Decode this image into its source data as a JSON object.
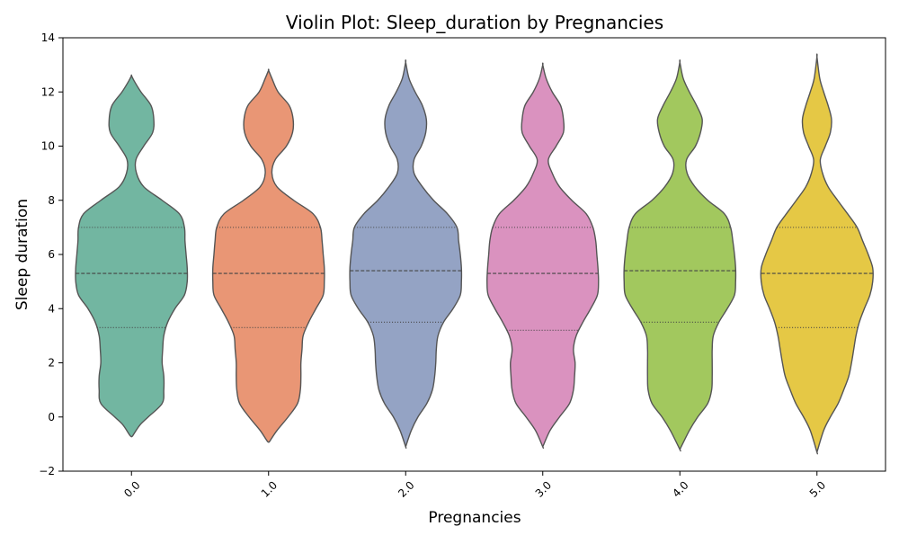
{
  "chart_data": {
    "type": "violin",
    "title": "Violin Plot: Sleep_duration by Pregnancies",
    "xlabel": "Pregnancies",
    "ylabel": "Sleep duration",
    "ylim": [
      -2,
      14
    ],
    "y_ticks": [
      -2,
      0,
      2,
      4,
      6,
      8,
      10,
      12,
      14
    ],
    "y_tick_labels": [
      "−2",
      "0",
      "2",
      "4",
      "6",
      "8",
      "10",
      "12",
      "14"
    ],
    "categories": [
      "0.0",
      "1.0",
      "2.0",
      "3.0",
      "4.0",
      "5.0"
    ],
    "x_tick_rotation_deg": -45,
    "grid": false,
    "legend": "none",
    "inner": "quartile",
    "series": [
      {
        "category": "0.0",
        "color": "#72b6a1",
        "min": -0.7,
        "max": 12.6,
        "q1": 3.3,
        "median": 5.3,
        "q3": 7.0,
        "density_profile": [
          [
            -0.7,
            0.02
          ],
          [
            -0.3,
            0.15
          ],
          [
            0.0,
            0.3
          ],
          [
            0.5,
            0.55
          ],
          [
            1.0,
            0.58
          ],
          [
            1.5,
            0.58
          ],
          [
            2.0,
            0.55
          ],
          [
            2.5,
            0.56
          ],
          [
            3.0,
            0.58
          ],
          [
            3.5,
            0.65
          ],
          [
            4.0,
            0.78
          ],
          [
            4.5,
            0.95
          ],
          [
            5.0,
            1.0
          ],
          [
            5.5,
            1.0
          ],
          [
            6.0,
            0.98
          ],
          [
            6.5,
            0.96
          ],
          [
            7.0,
            0.95
          ],
          [
            7.5,
            0.86
          ],
          [
            8.0,
            0.55
          ],
          [
            8.5,
            0.22
          ],
          [
            9.0,
            0.09
          ],
          [
            9.5,
            0.08
          ],
          [
            10.0,
            0.22
          ],
          [
            10.5,
            0.38
          ],
          [
            11.0,
            0.4
          ],
          [
            11.5,
            0.35
          ],
          [
            12.0,
            0.17
          ],
          [
            12.4,
            0.05
          ],
          [
            12.6,
            0.0
          ]
        ]
      },
      {
        "category": "1.0",
        "color": "#e99675",
        "min": -0.9,
        "max": 12.8,
        "q1": 3.3,
        "median": 5.3,
        "q3": 7.0,
        "density_profile": [
          [
            -0.9,
            0.02
          ],
          [
            -0.5,
            0.15
          ],
          [
            0.0,
            0.35
          ],
          [
            0.5,
            0.52
          ],
          [
            1.0,
            0.57
          ],
          [
            1.5,
            0.58
          ],
          [
            2.0,
            0.58
          ],
          [
            2.5,
            0.6
          ],
          [
            3.0,
            0.62
          ],
          [
            3.5,
            0.72
          ],
          [
            4.0,
            0.85
          ],
          [
            4.5,
            0.98
          ],
          [
            5.0,
            1.0
          ],
          [
            5.5,
            1.0
          ],
          [
            6.0,
            0.98
          ],
          [
            6.5,
            0.96
          ],
          [
            7.0,
            0.93
          ],
          [
            7.5,
            0.8
          ],
          [
            8.0,
            0.45
          ],
          [
            8.5,
            0.15
          ],
          [
            9.0,
            0.06
          ],
          [
            9.5,
            0.12
          ],
          [
            10.0,
            0.32
          ],
          [
            10.5,
            0.43
          ],
          [
            11.0,
            0.44
          ],
          [
            11.5,
            0.37
          ],
          [
            12.0,
            0.17
          ],
          [
            12.5,
            0.06
          ],
          [
            12.8,
            0.0
          ]
        ]
      },
      {
        "category": "2.0",
        "color": "#94a3c4",
        "min": -1.1,
        "max": 13.1,
        "q1": 3.5,
        "median": 5.4,
        "q3": 7.0,
        "density_profile": [
          [
            -1.1,
            0.0
          ],
          [
            -0.5,
            0.1
          ],
          [
            0.0,
            0.22
          ],
          [
            0.5,
            0.38
          ],
          [
            1.0,
            0.48
          ],
          [
            1.5,
            0.52
          ],
          [
            2.0,
            0.54
          ],
          [
            2.5,
            0.55
          ],
          [
            3.0,
            0.58
          ],
          [
            3.5,
            0.68
          ],
          [
            4.0,
            0.85
          ],
          [
            4.5,
            0.98
          ],
          [
            5.0,
            1.0
          ],
          [
            5.5,
            1.0
          ],
          [
            6.0,
            0.98
          ],
          [
            6.5,
            0.95
          ],
          [
            7.0,
            0.92
          ],
          [
            7.5,
            0.75
          ],
          [
            8.0,
            0.5
          ],
          [
            8.5,
            0.3
          ],
          [
            9.0,
            0.15
          ],
          [
            9.5,
            0.15
          ],
          [
            10.0,
            0.28
          ],
          [
            10.5,
            0.36
          ],
          [
            11.0,
            0.37
          ],
          [
            11.5,
            0.3
          ],
          [
            12.0,
            0.17
          ],
          [
            12.5,
            0.06
          ],
          [
            13.1,
            0.0
          ]
        ]
      },
      {
        "category": "3.0",
        "color": "#da92bf",
        "min": -1.1,
        "max": 13.0,
        "q1": 3.2,
        "median": 5.3,
        "q3": 7.0,
        "density_profile": [
          [
            -1.1,
            0.0
          ],
          [
            -0.5,
            0.13
          ],
          [
            0.0,
            0.3
          ],
          [
            0.5,
            0.48
          ],
          [
            1.0,
            0.55
          ],
          [
            1.5,
            0.57
          ],
          [
            2.0,
            0.58
          ],
          [
            2.5,
            0.55
          ],
          [
            3.0,
            0.6
          ],
          [
            3.5,
            0.72
          ],
          [
            4.0,
            0.86
          ],
          [
            4.5,
            0.98
          ],
          [
            5.0,
            1.0
          ],
          [
            5.5,
            0.99
          ],
          [
            6.0,
            0.97
          ],
          [
            6.5,
            0.95
          ],
          [
            7.0,
            0.9
          ],
          [
            7.5,
            0.78
          ],
          [
            8.0,
            0.52
          ],
          [
            8.5,
            0.3
          ],
          [
            9.0,
            0.17
          ],
          [
            9.5,
            0.1
          ],
          [
            10.0,
            0.24
          ],
          [
            10.5,
            0.37
          ],
          [
            11.0,
            0.37
          ],
          [
            11.5,
            0.32
          ],
          [
            12.0,
            0.17
          ],
          [
            12.5,
            0.06
          ],
          [
            13.0,
            0.0
          ]
        ]
      },
      {
        "category": "4.0",
        "color": "#a2c85e",
        "min": -1.2,
        "max": 13.1,
        "q1": 3.5,
        "median": 5.4,
        "q3": 7.0,
        "density_profile": [
          [
            -1.2,
            0.0
          ],
          [
            -0.5,
            0.17
          ],
          [
            0.0,
            0.32
          ],
          [
            0.5,
            0.5
          ],
          [
            1.0,
            0.57
          ],
          [
            1.5,
            0.58
          ],
          [
            2.0,
            0.58
          ],
          [
            2.5,
            0.58
          ],
          [
            3.0,
            0.6
          ],
          [
            3.5,
            0.7
          ],
          [
            4.0,
            0.85
          ],
          [
            4.5,
            0.98
          ],
          [
            5.0,
            1.0
          ],
          [
            5.5,
            1.0
          ],
          [
            6.0,
            0.98
          ],
          [
            6.5,
            0.95
          ],
          [
            7.0,
            0.91
          ],
          [
            7.5,
            0.8
          ],
          [
            8.0,
            0.5
          ],
          [
            8.5,
            0.27
          ],
          [
            9.0,
            0.13
          ],
          [
            9.5,
            0.12
          ],
          [
            10.0,
            0.28
          ],
          [
            10.5,
            0.37
          ],
          [
            11.0,
            0.4
          ],
          [
            11.5,
            0.3
          ],
          [
            12.0,
            0.17
          ],
          [
            12.5,
            0.06
          ],
          [
            13.1,
            0.0
          ]
        ]
      },
      {
        "category": "5.0",
        "color": "#e5c845",
        "min": -1.3,
        "max": 13.3,
        "q1": 3.3,
        "median": 5.3,
        "q3": 7.0,
        "density_profile": [
          [
            -1.3,
            0.0
          ],
          [
            -0.5,
            0.12
          ],
          [
            0.0,
            0.24
          ],
          [
            0.5,
            0.38
          ],
          [
            1.0,
            0.48
          ],
          [
            1.5,
            0.57
          ],
          [
            2.0,
            0.62
          ],
          [
            2.5,
            0.66
          ],
          [
            3.0,
            0.7
          ],
          [
            3.5,
            0.76
          ],
          [
            4.0,
            0.85
          ],
          [
            4.5,
            0.95
          ],
          [
            5.0,
            1.0
          ],
          [
            5.5,
            1.0
          ],
          [
            6.0,
            0.92
          ],
          [
            6.5,
            0.82
          ],
          [
            7.0,
            0.72
          ],
          [
            7.5,
            0.55
          ],
          [
            8.0,
            0.37
          ],
          [
            8.5,
            0.2
          ],
          [
            9.0,
            0.1
          ],
          [
            9.5,
            0.06
          ],
          [
            10.0,
            0.15
          ],
          [
            10.5,
            0.24
          ],
          [
            11.0,
            0.26
          ],
          [
            11.5,
            0.2
          ],
          [
            12.0,
            0.12
          ],
          [
            12.5,
            0.05
          ],
          [
            13.3,
            0.0
          ]
        ]
      }
    ],
    "outline_color": "#555555",
    "quartile_line_color": "#444444"
  }
}
